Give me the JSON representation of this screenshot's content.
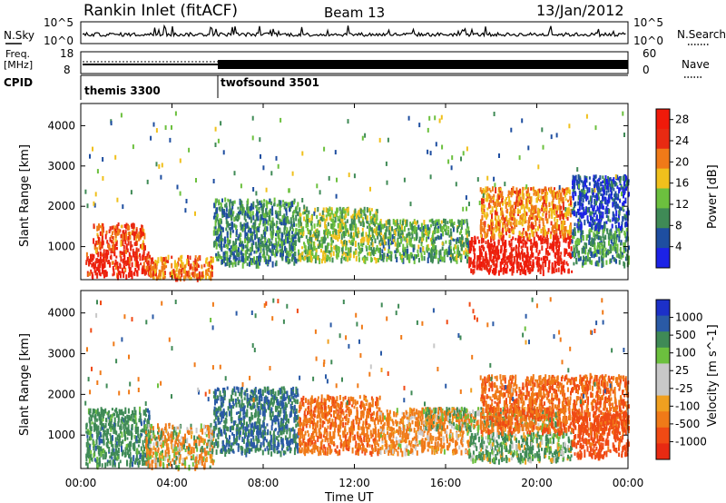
{
  "header": {
    "station": "Rankin Inlet (fitACF)",
    "beam": "Beam 13",
    "date": "13/Jan/2012"
  },
  "top_panels": {
    "nsky_label": "N.Sky",
    "nsky_ticks": [
      "10^5",
      "10^0"
    ],
    "nsearch_label": "N.Search",
    "nsearch_ticks": [
      "10^5",
      "10^0"
    ],
    "freq_label_1": "Freq.",
    "freq_label_2": "[MHz]",
    "freq_ticks": [
      "18",
      "8"
    ],
    "nave_label": "Nave",
    "nave_ticks": [
      "60",
      "0"
    ],
    "cpid_label": "CPID",
    "cpid_segments": [
      {
        "name": "themis 3300",
        "start_hour": 0,
        "end_hour": 5.95
      },
      {
        "name": "twofsound 3501",
        "start_hour": 5.95,
        "end_hour": 24
      }
    ]
  },
  "chart_data": [
    {
      "type": "heatmap",
      "name": "power",
      "ylabel": "Slant Range [km]",
      "yticks": [
        "1000",
        "2000",
        "3000",
        "4000"
      ],
      "ylim": [
        180,
        4550
      ],
      "xlim": [
        0,
        24
      ],
      "colorbar_label": "Power [dB]",
      "colorbar_ticks": [
        "4",
        "8",
        "12",
        "16",
        "20",
        "24",
        "28"
      ],
      "colorbar_range": [
        0,
        30
      ],
      "colors": [
        "#1c22e6",
        "#1e4ea0",
        "#3f8a56",
        "#6cc03e",
        "#f0c01c",
        "#f07a18",
        "#e82a12",
        "#f01a0a"
      ],
      "regions": [
        {
          "x": [
            0.2,
            3.0
          ],
          "y": [
            300,
            900
          ],
          "level": 28
        },
        {
          "x": [
            0.5,
            2.8
          ],
          "y": [
            900,
            1600
          ],
          "level": 24
        },
        {
          "x": [
            2.8,
            5.8
          ],
          "y": [
            250,
            800
          ],
          "level": 22
        },
        {
          "x": [
            5.8,
            9.5
          ],
          "y": [
            600,
            2200
          ],
          "level": 10
        },
        {
          "x": [
            9.5,
            13.0
          ],
          "y": [
            700,
            2000
          ],
          "level": 14
        },
        {
          "x": [
            13.0,
            17.0
          ],
          "y": [
            700,
            1700
          ],
          "level": 12
        },
        {
          "x": [
            17.0,
            21.5
          ],
          "y": [
            400,
            1300
          ],
          "level": 29
        },
        {
          "x": [
            17.5,
            21.5
          ],
          "y": [
            1300,
            2500
          ],
          "level": 21
        },
        {
          "x": [
            21.5,
            24.0
          ],
          "y": [
            600,
            1500
          ],
          "level": 11
        },
        {
          "x": [
            21.5,
            24.0
          ],
          "y": [
            1500,
            2800
          ],
          "level": 5
        }
      ]
    },
    {
      "type": "heatmap",
      "name": "velocity",
      "ylabel": "Slant Range [km]",
      "yticks": [
        "1000",
        "2000",
        "3000",
        "4000"
      ],
      "ylim": [
        180,
        4550
      ],
      "xlim": [
        0,
        24
      ],
      "xticks": [
        "00:00",
        "04:00",
        "08:00",
        "12:00",
        "16:00",
        "20:00",
        "00:00"
      ],
      "xlabel": "Time UT",
      "colorbar_label": "Velocity [m s^-1]",
      "colorbar_ticks": [
        "1000",
        "500",
        "100",
        "25",
        "-25",
        "-100",
        "-500",
        "-1000"
      ],
      "colorbar_range": [
        -1200,
        1200
      ],
      "colors": [
        "#e82a12",
        "#f04a14",
        "#f07a18",
        "#f0a020",
        "#c8c8c8",
        "#c8c8c8",
        "#6cc03e",
        "#3f8a56",
        "#2a5aa6",
        "#1c30c8"
      ],
      "regions": [
        {
          "x": [
            0.2,
            3.0
          ],
          "y": [
            300,
            1700
          ],
          "level": 300
        },
        {
          "x": [
            2.8,
            5.8
          ],
          "y": [
            250,
            1300
          ],
          "level": -60
        },
        {
          "x": [
            5.8,
            9.5
          ],
          "y": [
            600,
            2200
          ],
          "level": 500
        },
        {
          "x": [
            9.5,
            13.0
          ],
          "y": [
            600,
            2000
          ],
          "level": -400
        },
        {
          "x": [
            13.0,
            17.0
          ],
          "y": [
            600,
            1700
          ],
          "level": -200
        },
        {
          "x": [
            15.0,
            21.0
          ],
          "y": [
            1200,
            1700
          ],
          "level": 0
        },
        {
          "x": [
            17.0,
            21.5
          ],
          "y": [
            400,
            1100
          ],
          "level": 150
        },
        {
          "x": [
            17.5,
            24.0
          ],
          "y": [
            1100,
            2500
          ],
          "level": -450
        },
        {
          "x": [
            21.5,
            24.0
          ],
          "y": [
            500,
            1600
          ],
          "level": -700
        }
      ]
    }
  ]
}
